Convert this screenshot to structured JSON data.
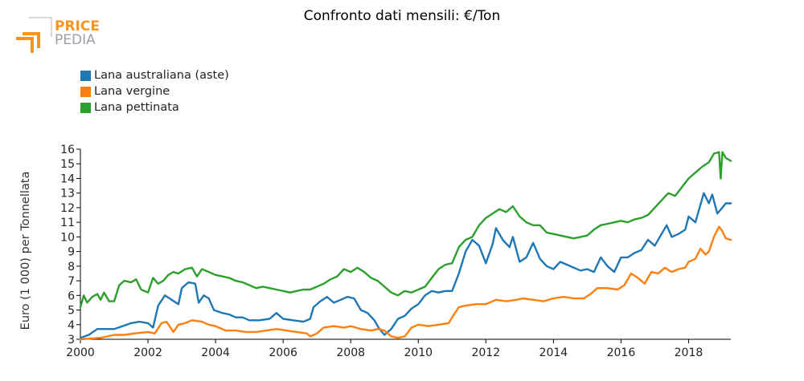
{
  "header": {
    "title": "Confronto dati mensili: €/Ton"
  },
  "logo": {
    "line1": "PRICE",
    "line2": "PEDIA",
    "accent_color": "#f7941d",
    "text_color": "#9aa0a6"
  },
  "chart_data": {
    "type": "line",
    "title": "Confronto dati mensili: €/Ton",
    "xlabel": "",
    "ylabel": "Euro (1 000) per Tonnellata",
    "xlim": [
      2000,
      2019.25
    ],
    "ylim": [
      3,
      16
    ],
    "x_ticks": [
      "2000",
      "2002",
      "2004",
      "2006",
      "2008",
      "2010",
      "2012",
      "2014",
      "2016",
      "2018"
    ],
    "y_ticks": [
      "3",
      "4",
      "5",
      "6",
      "7",
      "8",
      "9",
      "10",
      "11",
      "12",
      "13",
      "14",
      "15",
      "16"
    ],
    "grid": false,
    "legend_position": "top-left",
    "series": [
      {
        "name": "Lana australiana (aste)",
        "color": "#1f77b4",
        "points": [
          [
            2000.0,
            3.1
          ],
          [
            2000.25,
            3.3
          ],
          [
            2000.5,
            3.7
          ],
          [
            2000.75,
            3.7
          ],
          [
            2001.0,
            3.7
          ],
          [
            2001.25,
            3.9
          ],
          [
            2001.5,
            4.1
          ],
          [
            2001.75,
            4.2
          ],
          [
            2002.0,
            4.1
          ],
          [
            2002.15,
            3.8
          ],
          [
            2002.3,
            5.3
          ],
          [
            2002.5,
            6.0
          ],
          [
            2002.7,
            5.7
          ],
          [
            2002.9,
            5.4
          ],
          [
            2003.0,
            6.5
          ],
          [
            2003.2,
            6.9
          ],
          [
            2003.4,
            6.8
          ],
          [
            2003.5,
            5.5
          ],
          [
            2003.65,
            6.0
          ],
          [
            2003.8,
            5.8
          ],
          [
            2003.95,
            5.0
          ],
          [
            2004.2,
            4.8
          ],
          [
            2004.4,
            4.7
          ],
          [
            2004.6,
            4.5
          ],
          [
            2004.8,
            4.5
          ],
          [
            2005.0,
            4.3
          ],
          [
            2005.3,
            4.3
          ],
          [
            2005.6,
            4.4
          ],
          [
            2005.8,
            4.8
          ],
          [
            2006.0,
            4.4
          ],
          [
            2006.3,
            4.3
          ],
          [
            2006.6,
            4.2
          ],
          [
            2006.8,
            4.4
          ],
          [
            2006.9,
            5.2
          ],
          [
            2007.1,
            5.6
          ],
          [
            2007.3,
            5.9
          ],
          [
            2007.5,
            5.5
          ],
          [
            2007.7,
            5.7
          ],
          [
            2007.9,
            5.9
          ],
          [
            2008.1,
            5.8
          ],
          [
            2008.3,
            5.0
          ],
          [
            2008.5,
            4.8
          ],
          [
            2008.7,
            4.3
          ],
          [
            2008.85,
            3.7
          ],
          [
            2009.0,
            3.3
          ],
          [
            2009.2,
            3.7
          ],
          [
            2009.4,
            4.4
          ],
          [
            2009.6,
            4.6
          ],
          [
            2009.8,
            5.1
          ],
          [
            2010.0,
            5.4
          ],
          [
            2010.2,
            6.0
          ],
          [
            2010.4,
            6.3
          ],
          [
            2010.6,
            6.2
          ],
          [
            2010.8,
            6.3
          ],
          [
            2011.0,
            6.3
          ],
          [
            2011.2,
            7.5
          ],
          [
            2011.4,
            9.0
          ],
          [
            2011.6,
            9.8
          ],
          [
            2011.8,
            9.4
          ],
          [
            2012.0,
            8.2
          ],
          [
            2012.2,
            9.5
          ],
          [
            2012.3,
            10.6
          ],
          [
            2012.5,
            9.8
          ],
          [
            2012.7,
            9.3
          ],
          [
            2012.8,
            10.0
          ],
          [
            2013.0,
            8.3
          ],
          [
            2013.2,
            8.6
          ],
          [
            2013.4,
            9.6
          ],
          [
            2013.6,
            8.5
          ],
          [
            2013.8,
            8.0
          ],
          [
            2014.0,
            7.8
          ],
          [
            2014.2,
            8.3
          ],
          [
            2014.4,
            8.1
          ],
          [
            2014.6,
            7.9
          ],
          [
            2014.8,
            7.7
          ],
          [
            2015.0,
            7.8
          ],
          [
            2015.2,
            7.6
          ],
          [
            2015.4,
            8.6
          ],
          [
            2015.6,
            8.0
          ],
          [
            2015.8,
            7.6
          ],
          [
            2016.0,
            8.6
          ],
          [
            2016.2,
            8.6
          ],
          [
            2016.4,
            8.9
          ],
          [
            2016.6,
            9.1
          ],
          [
            2016.8,
            9.8
          ],
          [
            2017.0,
            9.4
          ],
          [
            2017.2,
            10.2
          ],
          [
            2017.35,
            10.8
          ],
          [
            2017.5,
            10.0
          ],
          [
            2017.7,
            10.2
          ],
          [
            2017.9,
            10.5
          ],
          [
            2018.0,
            11.4
          ],
          [
            2018.2,
            11.0
          ],
          [
            2018.35,
            12.2
          ],
          [
            2018.45,
            13.0
          ],
          [
            2018.6,
            12.3
          ],
          [
            2018.7,
            12.9
          ],
          [
            2018.85,
            11.6
          ],
          [
            2019.0,
            12.0
          ],
          [
            2019.1,
            12.3
          ],
          [
            2019.25,
            12.3
          ]
        ]
      },
      {
        "name": "Lana vergine",
        "color": "#ff7f0e",
        "points": [
          [
            2000.0,
            3.0
          ],
          [
            2000.3,
            3.05
          ],
          [
            2000.6,
            3.1
          ],
          [
            2001.0,
            3.3
          ],
          [
            2001.3,
            3.3
          ],
          [
            2001.6,
            3.4
          ],
          [
            2002.0,
            3.5
          ],
          [
            2002.2,
            3.4
          ],
          [
            2002.4,
            4.1
          ],
          [
            2002.55,
            4.2
          ],
          [
            2002.75,
            3.5
          ],
          [
            2002.9,
            4.0
          ],
          [
            2003.1,
            4.1
          ],
          [
            2003.3,
            4.3
          ],
          [
            2003.6,
            4.2
          ],
          [
            2003.8,
            4.0
          ],
          [
            2004.0,
            3.9
          ],
          [
            2004.3,
            3.6
          ],
          [
            2004.6,
            3.6
          ],
          [
            2004.9,
            3.5
          ],
          [
            2005.2,
            3.5
          ],
          [
            2005.5,
            3.6
          ],
          [
            2005.8,
            3.7
          ],
          [
            2006.1,
            3.6
          ],
          [
            2006.4,
            3.5
          ],
          [
            2006.7,
            3.4
          ],
          [
            2006.8,
            3.2
          ],
          [
            2007.0,
            3.4
          ],
          [
            2007.2,
            3.8
          ],
          [
            2007.5,
            3.9
          ],
          [
            2007.8,
            3.8
          ],
          [
            2008.0,
            3.9
          ],
          [
            2008.3,
            3.7
          ],
          [
            2008.6,
            3.6
          ],
          [
            2008.8,
            3.7
          ],
          [
            2009.0,
            3.6
          ],
          [
            2009.2,
            3.2
          ],
          [
            2009.4,
            3.1
          ],
          [
            2009.6,
            3.2
          ],
          [
            2009.8,
            3.8
          ],
          [
            2010.0,
            4.0
          ],
          [
            2010.3,
            3.9
          ],
          [
            2010.6,
            4.0
          ],
          [
            2010.9,
            4.1
          ],
          [
            2011.0,
            4.5
          ],
          [
            2011.2,
            5.2
          ],
          [
            2011.4,
            5.3
          ],
          [
            2011.7,
            5.4
          ],
          [
            2012.0,
            5.4
          ],
          [
            2012.3,
            5.7
          ],
          [
            2012.6,
            5.6
          ],
          [
            2012.9,
            5.7
          ],
          [
            2013.1,
            5.8
          ],
          [
            2013.4,
            5.7
          ],
          [
            2013.7,
            5.6
          ],
          [
            2014.0,
            5.8
          ],
          [
            2014.3,
            5.9
          ],
          [
            2014.6,
            5.8
          ],
          [
            2014.9,
            5.8
          ],
          [
            2015.1,
            6.1
          ],
          [
            2015.3,
            6.5
          ],
          [
            2015.6,
            6.5
          ],
          [
            2015.9,
            6.4
          ],
          [
            2016.1,
            6.7
          ],
          [
            2016.3,
            7.5
          ],
          [
            2016.5,
            7.2
          ],
          [
            2016.7,
            6.8
          ],
          [
            2016.9,
            7.6
          ],
          [
            2017.1,
            7.5
          ],
          [
            2017.3,
            7.9
          ],
          [
            2017.5,
            7.6
          ],
          [
            2017.7,
            7.8
          ],
          [
            2017.9,
            7.9
          ],
          [
            2018.0,
            8.3
          ],
          [
            2018.2,
            8.5
          ],
          [
            2018.35,
            9.2
          ],
          [
            2018.5,
            8.8
          ],
          [
            2018.6,
            9.0
          ],
          [
            2018.75,
            10.0
          ],
          [
            2018.9,
            10.7
          ],
          [
            2019.0,
            10.4
          ],
          [
            2019.1,
            9.9
          ],
          [
            2019.25,
            9.8
          ]
        ]
      },
      {
        "name": "Lana pettinata",
        "color": "#2ca02c",
        "points": [
          [
            2000.0,
            5.2
          ],
          [
            2000.1,
            6.0
          ],
          [
            2000.2,
            5.5
          ],
          [
            2000.35,
            5.9
          ],
          [
            2000.5,
            6.1
          ],
          [
            2000.6,
            5.7
          ],
          [
            2000.7,
            6.2
          ],
          [
            2000.85,
            5.6
          ],
          [
            2001.0,
            5.6
          ],
          [
            2001.15,
            6.7
          ],
          [
            2001.3,
            7.0
          ],
          [
            2001.5,
            6.9
          ],
          [
            2001.65,
            7.1
          ],
          [
            2001.8,
            6.4
          ],
          [
            2002.0,
            6.2
          ],
          [
            2002.15,
            7.2
          ],
          [
            2002.3,
            6.8
          ],
          [
            2002.45,
            7.0
          ],
          [
            2002.6,
            7.4
          ],
          [
            2002.75,
            7.6
          ],
          [
            2002.9,
            7.5
          ],
          [
            2003.1,
            7.8
          ],
          [
            2003.3,
            7.9
          ],
          [
            2003.45,
            7.3
          ],
          [
            2003.6,
            7.8
          ],
          [
            2003.8,
            7.6
          ],
          [
            2004.0,
            7.4
          ],
          [
            2004.2,
            7.3
          ],
          [
            2004.4,
            7.2
          ],
          [
            2004.6,
            7.0
          ],
          [
            2004.8,
            6.9
          ],
          [
            2005.0,
            6.7
          ],
          [
            2005.2,
            6.5
          ],
          [
            2005.4,
            6.6
          ],
          [
            2005.6,
            6.5
          ],
          [
            2005.8,
            6.4
          ],
          [
            2006.0,
            6.3
          ],
          [
            2006.2,
            6.2
          ],
          [
            2006.4,
            6.3
          ],
          [
            2006.6,
            6.4
          ],
          [
            2006.8,
            6.4
          ],
          [
            2007.0,
            6.6
          ],
          [
            2007.2,
            6.8
          ],
          [
            2007.4,
            7.1
          ],
          [
            2007.6,
            7.3
          ],
          [
            2007.8,
            7.8
          ],
          [
            2008.0,
            7.6
          ],
          [
            2008.2,
            7.9
          ],
          [
            2008.4,
            7.6
          ],
          [
            2008.6,
            7.2
          ],
          [
            2008.8,
            7.0
          ],
          [
            2009.0,
            6.6
          ],
          [
            2009.2,
            6.2
          ],
          [
            2009.4,
            6.0
          ],
          [
            2009.6,
            6.3
          ],
          [
            2009.8,
            6.2
          ],
          [
            2010.0,
            6.4
          ],
          [
            2010.2,
            6.6
          ],
          [
            2010.4,
            7.2
          ],
          [
            2010.6,
            7.8
          ],
          [
            2010.8,
            8.1
          ],
          [
            2011.0,
            8.2
          ],
          [
            2011.2,
            9.3
          ],
          [
            2011.4,
            9.8
          ],
          [
            2011.6,
            10.0
          ],
          [
            2011.8,
            10.8
          ],
          [
            2012.0,
            11.3
          ],
          [
            2012.2,
            11.6
          ],
          [
            2012.4,
            11.9
          ],
          [
            2012.6,
            11.7
          ],
          [
            2012.8,
            12.1
          ],
          [
            2013.0,
            11.4
          ],
          [
            2013.2,
            11.0
          ],
          [
            2013.4,
            10.8
          ],
          [
            2013.6,
            10.8
          ],
          [
            2013.8,
            10.3
          ],
          [
            2014.0,
            10.2
          ],
          [
            2014.2,
            10.1
          ],
          [
            2014.4,
            10.0
          ],
          [
            2014.6,
            9.9
          ],
          [
            2014.8,
            10.0
          ],
          [
            2015.0,
            10.1
          ],
          [
            2015.2,
            10.5
          ],
          [
            2015.4,
            10.8
          ],
          [
            2015.6,
            10.9
          ],
          [
            2015.8,
            11.0
          ],
          [
            2016.0,
            11.1
          ],
          [
            2016.2,
            11.0
          ],
          [
            2016.4,
            11.2
          ],
          [
            2016.6,
            11.3
          ],
          [
            2016.8,
            11.5
          ],
          [
            2017.0,
            12.0
          ],
          [
            2017.2,
            12.5
          ],
          [
            2017.4,
            13.0
          ],
          [
            2017.6,
            12.8
          ],
          [
            2017.8,
            13.4
          ],
          [
            2018.0,
            14.0
          ],
          [
            2018.2,
            14.4
          ],
          [
            2018.4,
            14.8
          ],
          [
            2018.6,
            15.1
          ],
          [
            2018.75,
            15.7
          ],
          [
            2018.9,
            15.8
          ],
          [
            2018.95,
            14.0
          ],
          [
            2019.0,
            15.8
          ],
          [
            2019.1,
            15.4
          ],
          [
            2019.25,
            15.2
          ]
        ]
      }
    ]
  }
}
